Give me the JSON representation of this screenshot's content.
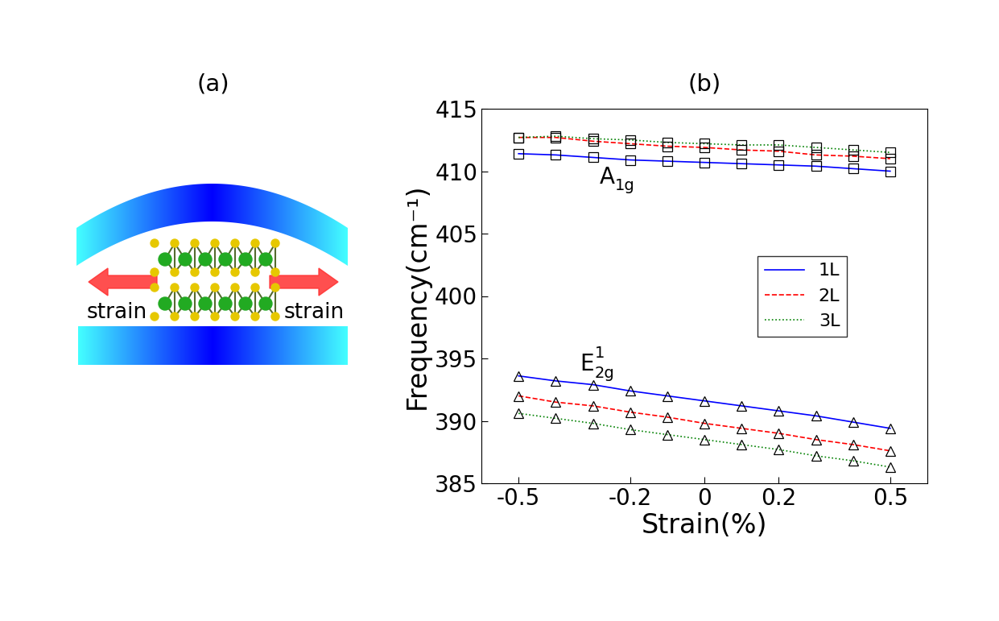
{
  "panel_labels": [
    "(a)",
    "(b)"
  ],
  "diagram": {
    "arrow_labels": [
      "strain",
      "strain"
    ]
  },
  "chart_data": {
    "type": "line",
    "xlabel": "Strain(%)",
    "ylabel": "Frequency(cm⁻¹)",
    "x": [
      -0.5,
      -0.4,
      -0.3,
      -0.2,
      -0.1,
      0,
      0.1,
      0.2,
      0.3,
      0.4,
      0.5
    ],
    "xlim": [
      -0.6,
      0.6
    ],
    "xticks": [
      -0.5,
      -0.2,
      0,
      0.2,
      0.5
    ],
    "ylim": [
      385,
      415
    ],
    "yticks": [
      385,
      390,
      395,
      400,
      405,
      410,
      415
    ],
    "legend": "center right",
    "groups": [
      {
        "label": {
          "main": "A",
          "sub": "1g"
        },
        "marker": "square",
        "series": [
          {
            "name": "1L",
            "color": "#0000ff",
            "line_style": "solid",
            "values": [
              411.4,
              411.3,
              411.1,
              410.9,
              410.8,
              410.7,
              410.6,
              410.5,
              410.4,
              410.2,
              410.0
            ]
          },
          {
            "name": "2L",
            "color": "#ff0000",
            "line_style": "dashed",
            "values": [
              412.7,
              412.7,
              412.4,
              412.2,
              412.0,
              411.9,
              411.7,
              411.6,
              411.3,
              411.2,
              411.0
            ]
          },
          {
            "name": "3L",
            "color": "#008000",
            "line_style": "dotted",
            "values": [
              412.7,
              412.8,
              412.6,
              412.5,
              412.3,
              412.2,
              412.1,
              412.1,
              411.9,
              411.7,
              411.5
            ]
          }
        ]
      },
      {
        "label": {
          "main": "E",
          "sup": "1",
          "sub": "2g"
        },
        "marker": "triangle",
        "series": [
          {
            "name": "1L",
            "color": "#0000ff",
            "line_style": "solid",
            "values": [
              393.6,
              393.2,
              392.9,
              392.4,
              392.0,
              391.6,
              391.2,
              390.8,
              390.4,
              389.9,
              389.4
            ]
          },
          {
            "name": "2L",
            "color": "#ff0000",
            "line_style": "dashed",
            "values": [
              392.0,
              391.5,
              391.2,
              390.7,
              390.3,
              389.8,
              389.4,
              389.0,
              388.5,
              388.1,
              387.6
            ]
          },
          {
            "name": "3L",
            "color": "#008000",
            "line_style": "dotted",
            "values": [
              390.6,
              390.2,
              389.8,
              389.3,
              388.9,
              388.5,
              388.1,
              387.7,
              387.2,
              386.8,
              386.3
            ]
          }
        ]
      }
    ]
  }
}
